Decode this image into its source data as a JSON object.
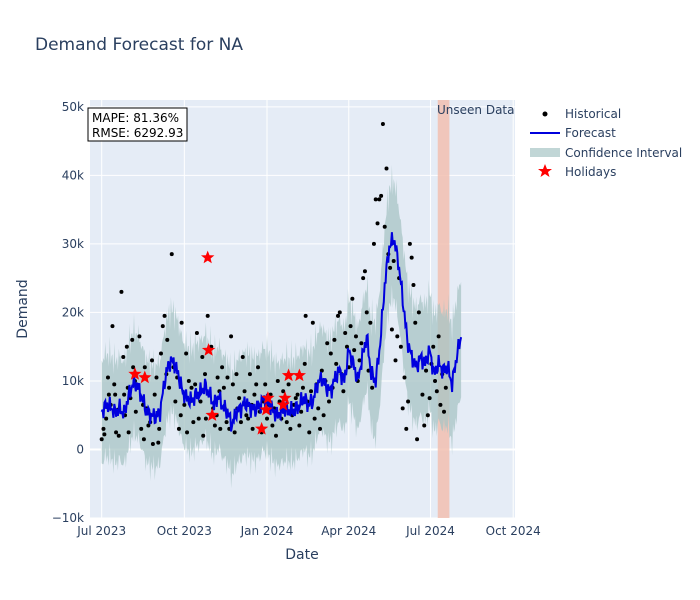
{
  "chart_data": {
    "type": "line",
    "title": "Demand Forecast for NA",
    "xlabel": "Date",
    "ylabel": "Demand",
    "ylim": [
      -10000,
      51000
    ],
    "yticks": [
      -10000,
      0,
      10000,
      20000,
      30000,
      40000,
      50000
    ],
    "ytick_labels": [
      "−10k",
      "0",
      "10k",
      "20k",
      "30k",
      "40k",
      "50k"
    ],
    "xlim_days": [
      -13,
      460
    ],
    "xticks_days": [
      0,
      92,
      184,
      275,
      366,
      458
    ],
    "xtick_labels": [
      "Jul 2023",
      "Oct 2023",
      "Jan 2024",
      "Apr 2024",
      "Jul 2024",
      "Oct 2024"
    ],
    "metrics": {
      "mape": "MAPE: 81.36%",
      "rmse": "RMSE: 6292.93"
    },
    "unseen_region": {
      "label": "Unseen Data",
      "start_day": 374,
      "end_day": 387
    },
    "legend": [
      {
        "name": "Historical",
        "color": "#000000",
        "symbol": "dot"
      },
      {
        "name": "Forecast",
        "color": "#0000cc",
        "symbol": "line"
      },
      {
        "name": "Confidence Interval",
        "color": "#a7c4c4",
        "symbol": "band"
      },
      {
        "name": "Holidays",
        "color": "#ff0000",
        "symbol": "star"
      }
    ],
    "colors": {
      "plot_bg": "#e5ecf6",
      "grid": "#ffffff",
      "historical": "#000000",
      "forecast": "#0000dd",
      "band": "#a7c4c4",
      "holiday": "#ff0000",
      "unseen": "#f2bfb0"
    },
    "forecast_knots": [
      [
        0,
        5500
      ],
      [
        5,
        6500
      ],
      [
        10,
        6200
      ],
      [
        15,
        5400
      ],
      [
        20,
        6000
      ],
      [
        25,
        5200
      ],
      [
        30,
        7800
      ],
      [
        35,
        9700
      ],
      [
        40,
        9300
      ],
      [
        45,
        7500
      ],
      [
        50,
        5500
      ],
      [
        55,
        5000
      ],
      [
        60,
        4700
      ],
      [
        65,
        5500
      ],
      [
        70,
        10000
      ],
      [
        75,
        12700
      ],
      [
        80,
        12800
      ],
      [
        85,
        11000
      ],
      [
        90,
        8500
      ],
      [
        95,
        7500
      ],
      [
        100,
        7000
      ],
      [
        105,
        8000
      ],
      [
        110,
        8300
      ],
      [
        115,
        9300
      ],
      [
        120,
        8000
      ],
      [
        125,
        6500
      ],
      [
        130,
        7800
      ],
      [
        135,
        6200
      ],
      [
        140,
        5500
      ],
      [
        145,
        3500
      ],
      [
        150,
        5500
      ],
      [
        155,
        6000
      ],
      [
        160,
        6800
      ],
      [
        165,
        6200
      ],
      [
        170,
        5800
      ],
      [
        175,
        6200
      ],
      [
        180,
        7400
      ],
      [
        185,
        6800
      ],
      [
        190,
        5800
      ],
      [
        195,
        5000
      ],
      [
        200,
        5500
      ],
      [
        205,
        6000
      ],
      [
        210,
        5500
      ],
      [
        215,
        5800
      ],
      [
        220,
        6500
      ],
      [
        225,
        7500
      ],
      [
        230,
        6500
      ],
      [
        235,
        7000
      ],
      [
        240,
        9500
      ],
      [
        245,
        10500
      ],
      [
        250,
        9000
      ],
      [
        255,
        8500
      ],
      [
        260,
        10500
      ],
      [
        265,
        11500
      ],
      [
        270,
        10000
      ],
      [
        275,
        14500
      ],
      [
        280,
        12500
      ],
      [
        285,
        10000
      ],
      [
        290,
        13500
      ],
      [
        295,
        16500
      ],
      [
        300,
        11000
      ],
      [
        305,
        10000
      ],
      [
        310,
        15500
      ],
      [
        315,
        24000
      ],
      [
        320,
        29500
      ],
      [
        325,
        30800
      ],
      [
        330,
        27500
      ],
      [
        335,
        22000
      ],
      [
        340,
        16000
      ],
      [
        345,
        13500
      ],
      [
        350,
        12000
      ],
      [
        355,
        13500
      ],
      [
        360,
        12500
      ],
      [
        365,
        14500
      ],
      [
        370,
        11000
      ],
      [
        375,
        12500
      ],
      [
        380,
        11500
      ],
      [
        385,
        12000
      ],
      [
        390,
        9500
      ],
      [
        395,
        13500
      ],
      [
        400,
        16500
      ]
    ],
    "band_halfwidth": 7500,
    "band_halfwidth_late": 8500,
    "historical_scatter": [
      [
        0,
        1500
      ],
      [
        2,
        3000
      ],
      [
        3,
        2200
      ],
      [
        5,
        4500
      ],
      [
        7,
        10500
      ],
      [
        8,
        8000
      ],
      [
        10,
        6500
      ],
      [
        12,
        18000
      ],
      [
        14,
        9500
      ],
      [
        15,
        8000
      ],
      [
        16,
        2500
      ],
      [
        18,
        5800
      ],
      [
        19,
        2000
      ],
      [
        22,
        23000
      ],
      [
        24,
        13500
      ],
      [
        25,
        8000
      ],
      [
        26,
        5000
      ],
      [
        28,
        15000
      ],
      [
        29,
        9000
      ],
      [
        30,
        2500
      ],
      [
        32,
        7500
      ],
      [
        34,
        16000
      ],
      [
        35,
        12000
      ],
      [
        37,
        10000
      ],
      [
        38,
        5500
      ],
      [
        40,
        9000
      ],
      [
        42,
        16500
      ],
      [
        44,
        3000
      ],
      [
        46,
        6500
      ],
      [
        47,
        1500
      ],
      [
        48,
        12000
      ],
      [
        50,
        6000
      ],
      [
        52,
        3500
      ],
      [
        54,
        4000
      ],
      [
        56,
        13000
      ],
      [
        57,
        800
      ],
      [
        59,
        8000
      ],
      [
        61,
        10500
      ],
      [
        63,
        1000
      ],
      [
        64,
        3000
      ],
      [
        66,
        14000
      ],
      [
        68,
        18000
      ],
      [
        70,
        19500
      ],
      [
        72,
        11000
      ],
      [
        73,
        16000
      ],
      [
        75,
        9000
      ],
      [
        78,
        28500
      ],
      [
        80,
        12000
      ],
      [
        82,
        7000
      ],
      [
        84,
        10500
      ],
      [
        86,
        3000
      ],
      [
        88,
        5000
      ],
      [
        89,
        18500
      ],
      [
        92,
        6500
      ],
      [
        94,
        14000
      ],
      [
        95,
        2500
      ],
      [
        97,
        10000
      ],
      [
        98,
        7000
      ],
      [
        100,
        9000
      ],
      [
        102,
        4000
      ],
      [
        104,
        9500
      ],
      [
        106,
        17000
      ],
      [
        108,
        4500
      ],
      [
        110,
        7000
      ],
      [
        112,
        13500
      ],
      [
        113,
        2000
      ],
      [
        115,
        11000
      ],
      [
        116,
        4500
      ],
      [
        118,
        19500
      ],
      [
        120,
        8000
      ],
      [
        122,
        15000
      ],
      [
        124,
        6000
      ],
      [
        126,
        3500
      ],
      [
        128,
        5000
      ],
      [
        129,
        10500
      ],
      [
        131,
        8500
      ],
      [
        132,
        3000
      ],
      [
        134,
        12000
      ],
      [
        136,
        9000
      ],
      [
        137,
        6000
      ],
      [
        139,
        4000
      ],
      [
        140,
        10500
      ],
      [
        142,
        3000
      ],
      [
        144,
        16500
      ],
      [
        146,
        9500
      ],
      [
        148,
        2500
      ],
      [
        150,
        11000
      ],
      [
        151,
        6000
      ],
      [
        153,
        7500
      ],
      [
        155,
        4000
      ],
      [
        157,
        13500
      ],
      [
        159,
        8500
      ],
      [
        161,
        5000
      ],
      [
        163,
        4500
      ],
      [
        165,
        11000
      ],
      [
        167,
        6500
      ],
      [
        168,
        3000
      ],
      [
        170,
        8000
      ],
      [
        172,
        9500
      ],
      [
        174,
        12000
      ],
      [
        176,
        5500
      ],
      [
        178,
        2500
      ],
      [
        180,
        7000
      ],
      [
        182,
        9500
      ],
      [
        184,
        4500
      ],
      [
        186,
        6500
      ],
      [
        188,
        8000
      ],
      [
        190,
        3500
      ],
      [
        192,
        6000
      ],
      [
        194,
        2000
      ],
      [
        196,
        10000
      ],
      [
        198,
        7000
      ],
      [
        200,
        4500
      ],
      [
        202,
        8500
      ],
      [
        204,
        6500
      ],
      [
        206,
        4000
      ],
      [
        208,
        9500
      ],
      [
        210,
        3000
      ],
      [
        212,
        5000
      ],
      [
        214,
        6500
      ],
      [
        216,
        7500
      ],
      [
        218,
        8000
      ],
      [
        220,
        3500
      ],
      [
        222,
        5500
      ],
      [
        224,
        9000
      ],
      [
        226,
        12500
      ],
      [
        227,
        19500
      ],
      [
        229,
        7000
      ],
      [
        231,
        2500
      ],
      [
        233,
        8500
      ],
      [
        235,
        18500
      ],
      [
        237,
        4500
      ],
      [
        239,
        9500
      ],
      [
        241,
        6000
      ],
      [
        243,
        3000
      ],
      [
        245,
        11500
      ],
      [
        247,
        5000
      ],
      [
        249,
        10000
      ],
      [
        251,
        15500
      ],
      [
        253,
        7000
      ],
      [
        255,
        14000
      ],
      [
        257,
        9000
      ],
      [
        259,
        16000
      ],
      [
        261,
        12500
      ],
      [
        263,
        19500
      ],
      [
        265,
        20000
      ],
      [
        267,
        11000
      ],
      [
        269,
        8500
      ],
      [
        271,
        17000
      ],
      [
        273,
        15000
      ],
      [
        275,
        12000
      ],
      [
        277,
        18000
      ],
      [
        279,
        22000
      ],
      [
        281,
        14500
      ],
      [
        283,
        16500
      ],
      [
        285,
        10000
      ],
      [
        287,
        13000
      ],
      [
        289,
        15500
      ],
      [
        291,
        25000
      ],
      [
        293,
        26000
      ],
      [
        295,
        20000
      ],
      [
        297,
        11500
      ],
      [
        299,
        18500
      ],
      [
        301,
        9000
      ],
      [
        303,
        30000
      ],
      [
        305,
        36500
      ],
      [
        307,
        33000
      ],
      [
        309,
        36500
      ],
      [
        311,
        37000
      ],
      [
        313,
        47500
      ],
      [
        315,
        32500
      ],
      [
        317,
        41000
      ],
      [
        319,
        28500
      ],
      [
        321,
        26500
      ],
      [
        323,
        17500
      ],
      [
        325,
        27500
      ],
      [
        327,
        13000
      ],
      [
        329,
        16500
      ],
      [
        331,
        25000
      ],
      [
        333,
        15000
      ],
      [
        335,
        6000
      ],
      [
        337,
        10500
      ],
      [
        339,
        3000
      ],
      [
        341,
        7000
      ],
      [
        343,
        30000
      ],
      [
        345,
        28000
      ],
      [
        347,
        24000
      ],
      [
        349,
        18500
      ],
      [
        351,
        1500
      ],
      [
        353,
        20000
      ],
      [
        355,
        13500
      ],
      [
        357,
        8000
      ],
      [
        359,
        3500
      ],
      [
        361,
        11500
      ],
      [
        363,
        5000
      ],
      [
        365,
        7500
      ],
      [
        367,
        12500
      ],
      [
        369,
        15000
      ],
      [
        371,
        10000
      ],
      [
        373,
        8500
      ],
      [
        375,
        16500
      ],
      [
        377,
        6500
      ],
      [
        379,
        11000
      ],
      [
        381,
        5500
      ],
      [
        383,
        9000
      ]
    ],
    "holidays": [
      [
        37,
        11000
      ],
      [
        48,
        10500
      ],
      [
        118,
        28000
      ],
      [
        119,
        14500
      ],
      [
        123,
        5000
      ],
      [
        178,
        3000
      ],
      [
        183,
        5800
      ],
      [
        185,
        7500
      ],
      [
        202,
        6500
      ],
      [
        204,
        7500
      ],
      [
        208,
        10800
      ],
      [
        220,
        10800
      ]
    ]
  }
}
